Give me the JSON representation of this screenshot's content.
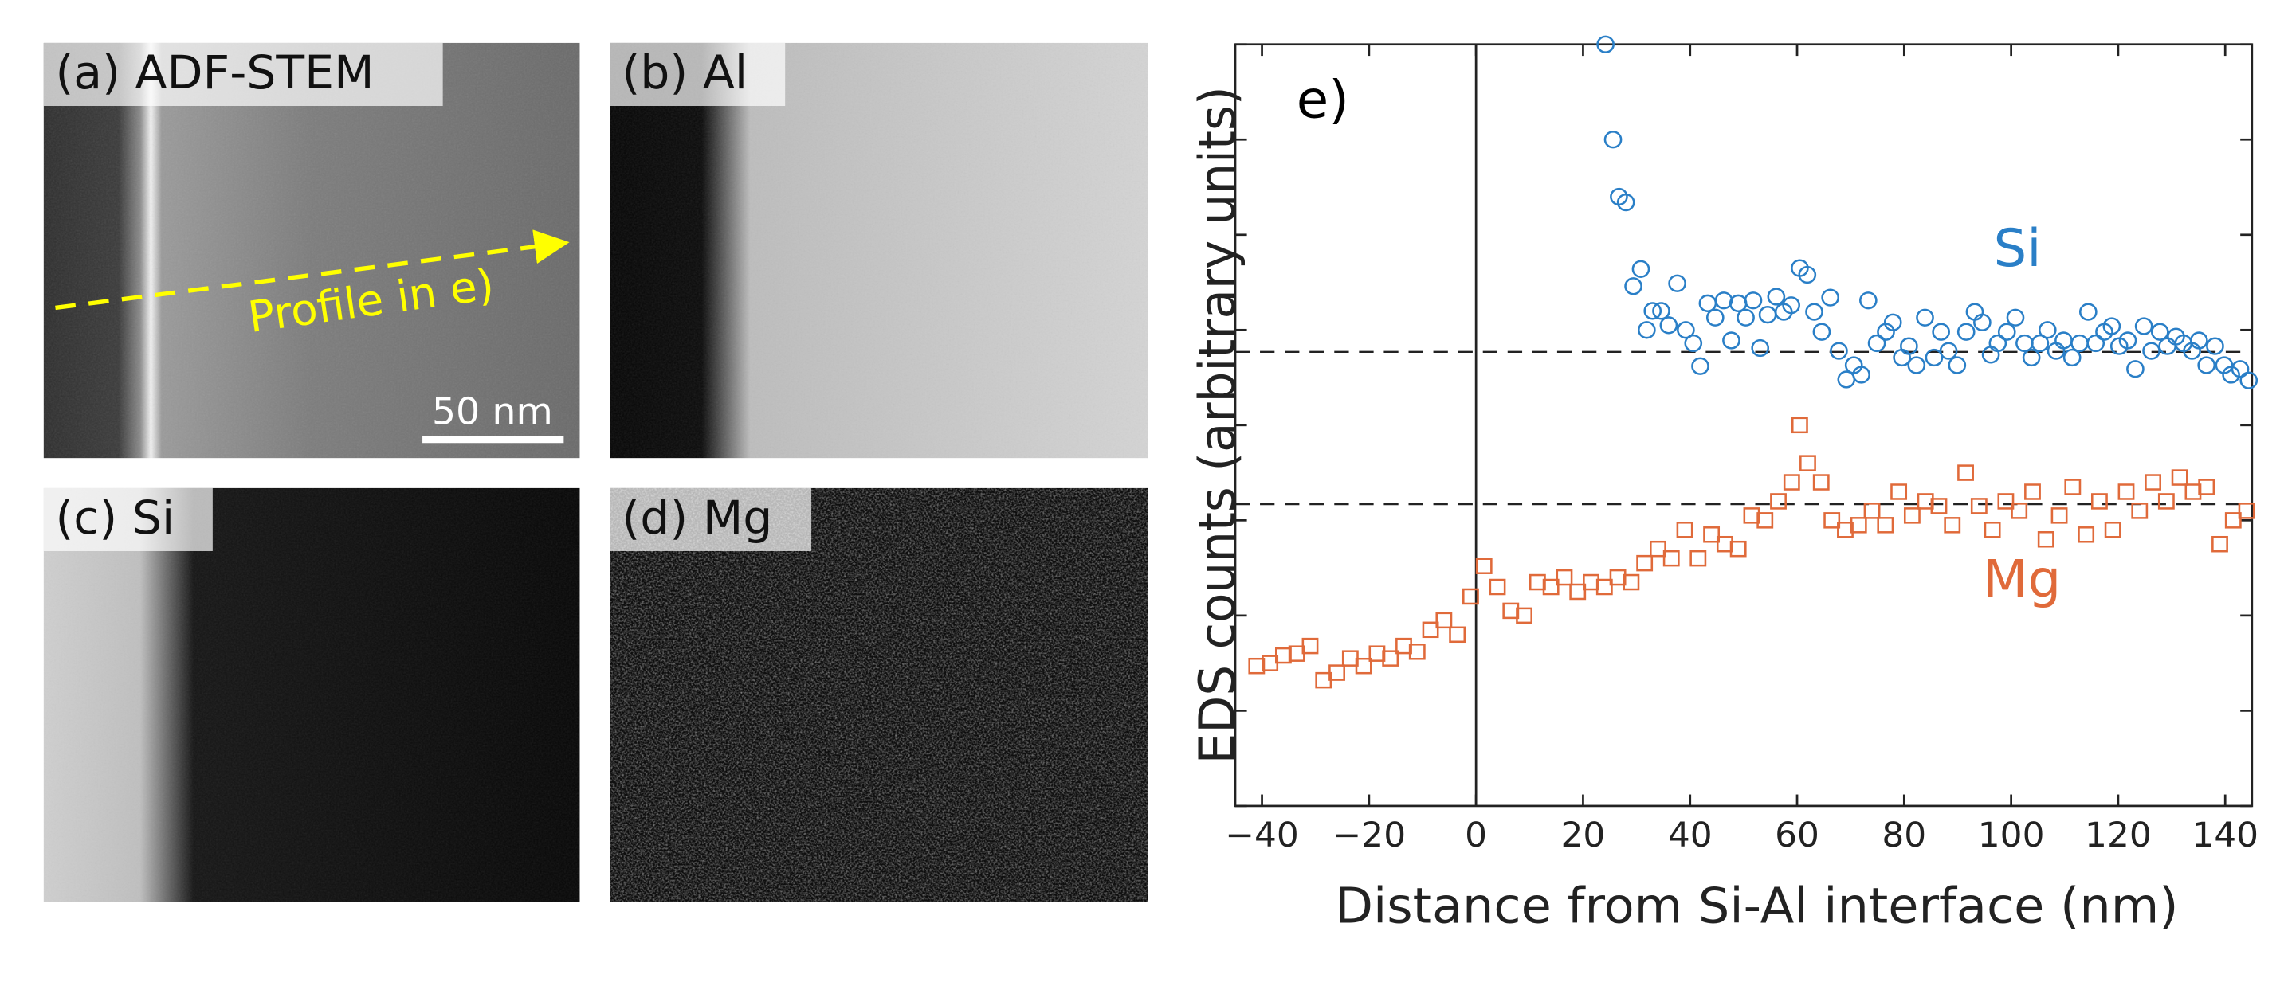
{
  "panels": [
    {
      "label": "(a) ADF-STEM"
    },
    {
      "label": "(b) Al"
    },
    {
      "label": "(c) Si"
    },
    {
      "label": "(d) Mg"
    }
  ],
  "panel_a": {
    "arrow_label": "Profile in e)",
    "scale_bar": "50 nm"
  },
  "chart_data": {
    "type": "scatter",
    "xlabel": "Distance from Si-Al interface (nm)",
    "ylabel": "EDS counts (arbitrary units)",
    "xlim": [
      -45,
      145
    ],
    "ylim": [
      0,
      8
    ],
    "xticks": [
      {
        "value": -40,
        "label": "−40"
      },
      {
        "value": -20,
        "label": "−20"
      },
      0,
      20,
      40,
      60,
      80,
      100,
      120,
      140
    ],
    "yticks": [
      0,
      1,
      2,
      3,
      4,
      5,
      6,
      7,
      8
    ],
    "ytick_labels": false,
    "vline": 0,
    "reference_lines": [
      4.77,
      3.17
    ],
    "annotations": [
      {
        "text": "e)",
        "color": "#000000"
      },
      {
        "text": "Si",
        "color": "#2a7fc7"
      },
      {
        "text": "Mg",
        "color": "#e06a3a"
      }
    ],
    "series": [
      {
        "name": "Si",
        "color": "#2a7fc7",
        "marker": "circle",
        "x": [
          24.2,
          25.6,
          26.7,
          28,
          29.4,
          30.8,
          31.9,
          33,
          34.6,
          36,
          37.6,
          39.2,
          40.6,
          41.9,
          43.3,
          44.7,
          46.3,
          47.7,
          49,
          50.4,
          51.8,
          53.1,
          54.5,
          56.1,
          57.5,
          58.9,
          60.5,
          61.9,
          63.2,
          64.6,
          66.2,
          67.8,
          69.2,
          70.6,
          72,
          73.3,
          74.9,
          76.6,
          77.9,
          79.6,
          80.9,
          82.3,
          83.9,
          85.6,
          86.9,
          88.3,
          89.9,
          91.6,
          93.2,
          94.6,
          96.2,
          97.5,
          99.2,
          100.8,
          102.5,
          103.8,
          105.4,
          106.8,
          108.4,
          109.8,
          111.4,
          112.8,
          114.4,
          115.8,
          117.4,
          118.8,
          120.2,
          121.8,
          123.2,
          124.8,
          126.2,
          127.8,
          129.2,
          130.8,
          132.2,
          133.8,
          135.1,
          136.5,
          138.1,
          139.8,
          141.1,
          142.8,
          144.4
        ],
        "values": [
          8.0,
          7.0,
          6.4,
          6.34,
          5.46,
          5.64,
          5.0,
          5.2,
          5.2,
          5.05,
          5.49,
          5.0,
          4.86,
          4.62,
          5.28,
          5.13,
          5.31,
          4.89,
          5.28,
          5.13,
          5.31,
          4.81,
          5.16,
          5.35,
          5.19,
          5.26,
          5.65,
          5.58,
          5.19,
          4.98,
          5.34,
          4.78,
          4.48,
          4.63,
          4.53,
          5.31,
          4.86,
          4.98,
          5.08,
          4.71,
          4.83,
          4.63,
          5.13,
          4.71,
          4.98,
          4.78,
          4.63,
          4.98,
          5.19,
          5.08,
          4.74,
          4.86,
          4.98,
          5.13,
          4.86,
          4.71,
          4.86,
          5.0,
          4.78,
          4.89,
          4.71,
          4.86,
          5.19,
          4.86,
          4.98,
          5.04,
          4.83,
          4.89,
          4.59,
          5.04,
          4.78,
          4.98,
          4.83,
          4.93,
          4.86,
          4.78,
          4.89,
          4.63,
          4.83,
          4.63,
          4.53,
          4.59,
          4.47
        ]
      },
      {
        "name": "Mg",
        "color": "#e06a3a",
        "marker": "square",
        "x": [
          -41,
          -38.5,
          -36,
          -33.5,
          -31,
          -28.5,
          -26,
          -23.5,
          -21,
          -18.5,
          -16,
          -13.5,
          -11,
          -8.5,
          -6,
          -3.5,
          -1,
          1.5,
          4,
          6.5,
          9,
          11.5,
          14,
          16.5,
          19,
          21.5,
          24,
          26.5,
          29,
          31.5,
          34,
          36.5,
          39,
          41.5,
          44,
          46.5,
          49,
          51.5,
          54,
          56.5,
          59,
          60.5,
          62,
          64.5,
          66.5,
          69,
          71.5,
          74,
          76.5,
          79,
          81.5,
          84,
          86.5,
          89,
          91.5,
          94,
          96.5,
          99,
          101.5,
          104,
          106.5,
          109,
          111.5,
          114,
          116.5,
          119,
          121.5,
          124,
          126.5,
          129,
          131.5,
          134,
          136.5,
          139,
          141.5,
          144
        ],
        "values": [
          1.47,
          1.5,
          1.58,
          1.6,
          1.68,
          1.32,
          1.4,
          1.55,
          1.47,
          1.6,
          1.55,
          1.68,
          1.62,
          1.85,
          1.95,
          1.8,
          2.2,
          2.52,
          2.3,
          2.05,
          2.0,
          2.35,
          2.3,
          2.4,
          2.25,
          2.35,
          2.3,
          2.4,
          2.35,
          2.55,
          2.7,
          2.6,
          2.9,
          2.6,
          2.85,
          2.75,
          2.7,
          3.05,
          3.0,
          3.2,
          3.4,
          4.0,
          3.6,
          3.4,
          3.0,
          2.9,
          2.95,
          3.1,
          2.95,
          3.3,
          3.05,
          3.2,
          3.15,
          2.95,
          3.5,
          3.15,
          2.9,
          3.2,
          3.1,
          3.3,
          2.8,
          3.05,
          3.35,
          2.85,
          3.2,
          2.9,
          3.3,
          3.1,
          3.4,
          3.2,
          3.45,
          3.3,
          3.35,
          2.75,
          3.0,
          3.1
        ]
      }
    ]
  }
}
